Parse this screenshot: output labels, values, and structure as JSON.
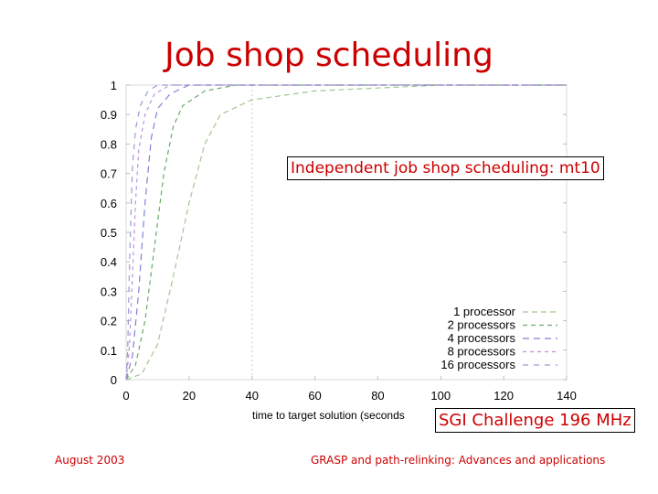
{
  "slide": {
    "title": "Job shop scheduling",
    "box_title": "Independent job shop scheduling: mt10",
    "box_machine": "SGI Challenge 196 MHz",
    "footer_left": "August 2003",
    "footer_right": "GRASP and path-relinking: Advances and applications"
  },
  "chart_data": {
    "type": "line",
    "xlabel": "time to target solution (seconds",
    "ylabel": "",
    "xlim": [
      0,
      140
    ],
    "ylim": [
      0,
      1
    ],
    "xticks": [
      "0",
      "20",
      "40",
      "60",
      "80",
      "100",
      "120",
      "140"
    ],
    "yticks": [
      "0",
      "0.1",
      "0.2",
      "0.3",
      "0.4",
      "0.5",
      "0.6",
      "0.7",
      "0.8",
      "0.9",
      "1"
    ],
    "grid": false,
    "legend_position": "bottom-right",
    "series": [
      {
        "name": "1 processor",
        "color": "#a0c890",
        "points": [
          [
            0,
            0
          ],
          [
            5,
            0.02
          ],
          [
            10,
            0.12
          ],
          [
            15,
            0.35
          ],
          [
            20,
            0.6
          ],
          [
            25,
            0.8
          ],
          [
            30,
            0.9
          ],
          [
            40,
            0.95
          ],
          [
            60,
            0.98
          ],
          [
            80,
            0.99
          ],
          [
            100,
            1
          ],
          [
            140,
            1
          ]
        ]
      },
      {
        "name": "2 processors",
        "color": "#6aaa6a",
        "points": [
          [
            0,
            0
          ],
          [
            3,
            0.05
          ],
          [
            6,
            0.2
          ],
          [
            9,
            0.45
          ],
          [
            12,
            0.7
          ],
          [
            15,
            0.86
          ],
          [
            18,
            0.93
          ],
          [
            25,
            0.98
          ],
          [
            35,
            1
          ],
          [
            140,
            1
          ]
        ]
      },
      {
        "name": "4 processors",
        "color": "#8080d8",
        "points": [
          [
            0,
            0
          ],
          [
            2,
            0.08
          ],
          [
            4,
            0.3
          ],
          [
            6,
            0.6
          ],
          [
            8,
            0.82
          ],
          [
            10,
            0.92
          ],
          [
            14,
            0.97
          ],
          [
            20,
            1
          ],
          [
            140,
            1
          ]
        ]
      },
      {
        "name": "8 processors",
        "color": "#c090e0",
        "points": [
          [
            0,
            0
          ],
          [
            1,
            0.1
          ],
          [
            2,
            0.35
          ],
          [
            3,
            0.6
          ],
          [
            4,
            0.78
          ],
          [
            6,
            0.9
          ],
          [
            9,
            0.97
          ],
          [
            14,
            1
          ],
          [
            140,
            1
          ]
        ]
      },
      {
        "name": "16 processors",
        "color": "#9a9ad0",
        "points": [
          [
            0,
            0
          ],
          [
            0.5,
            0.1
          ],
          [
            1,
            0.35
          ],
          [
            1.5,
            0.55
          ],
          [
            2,
            0.72
          ],
          [
            3,
            0.85
          ],
          [
            4.5,
            0.93
          ],
          [
            7,
            0.98
          ],
          [
            10,
            1
          ],
          [
            140,
            1
          ]
        ]
      }
    ]
  }
}
